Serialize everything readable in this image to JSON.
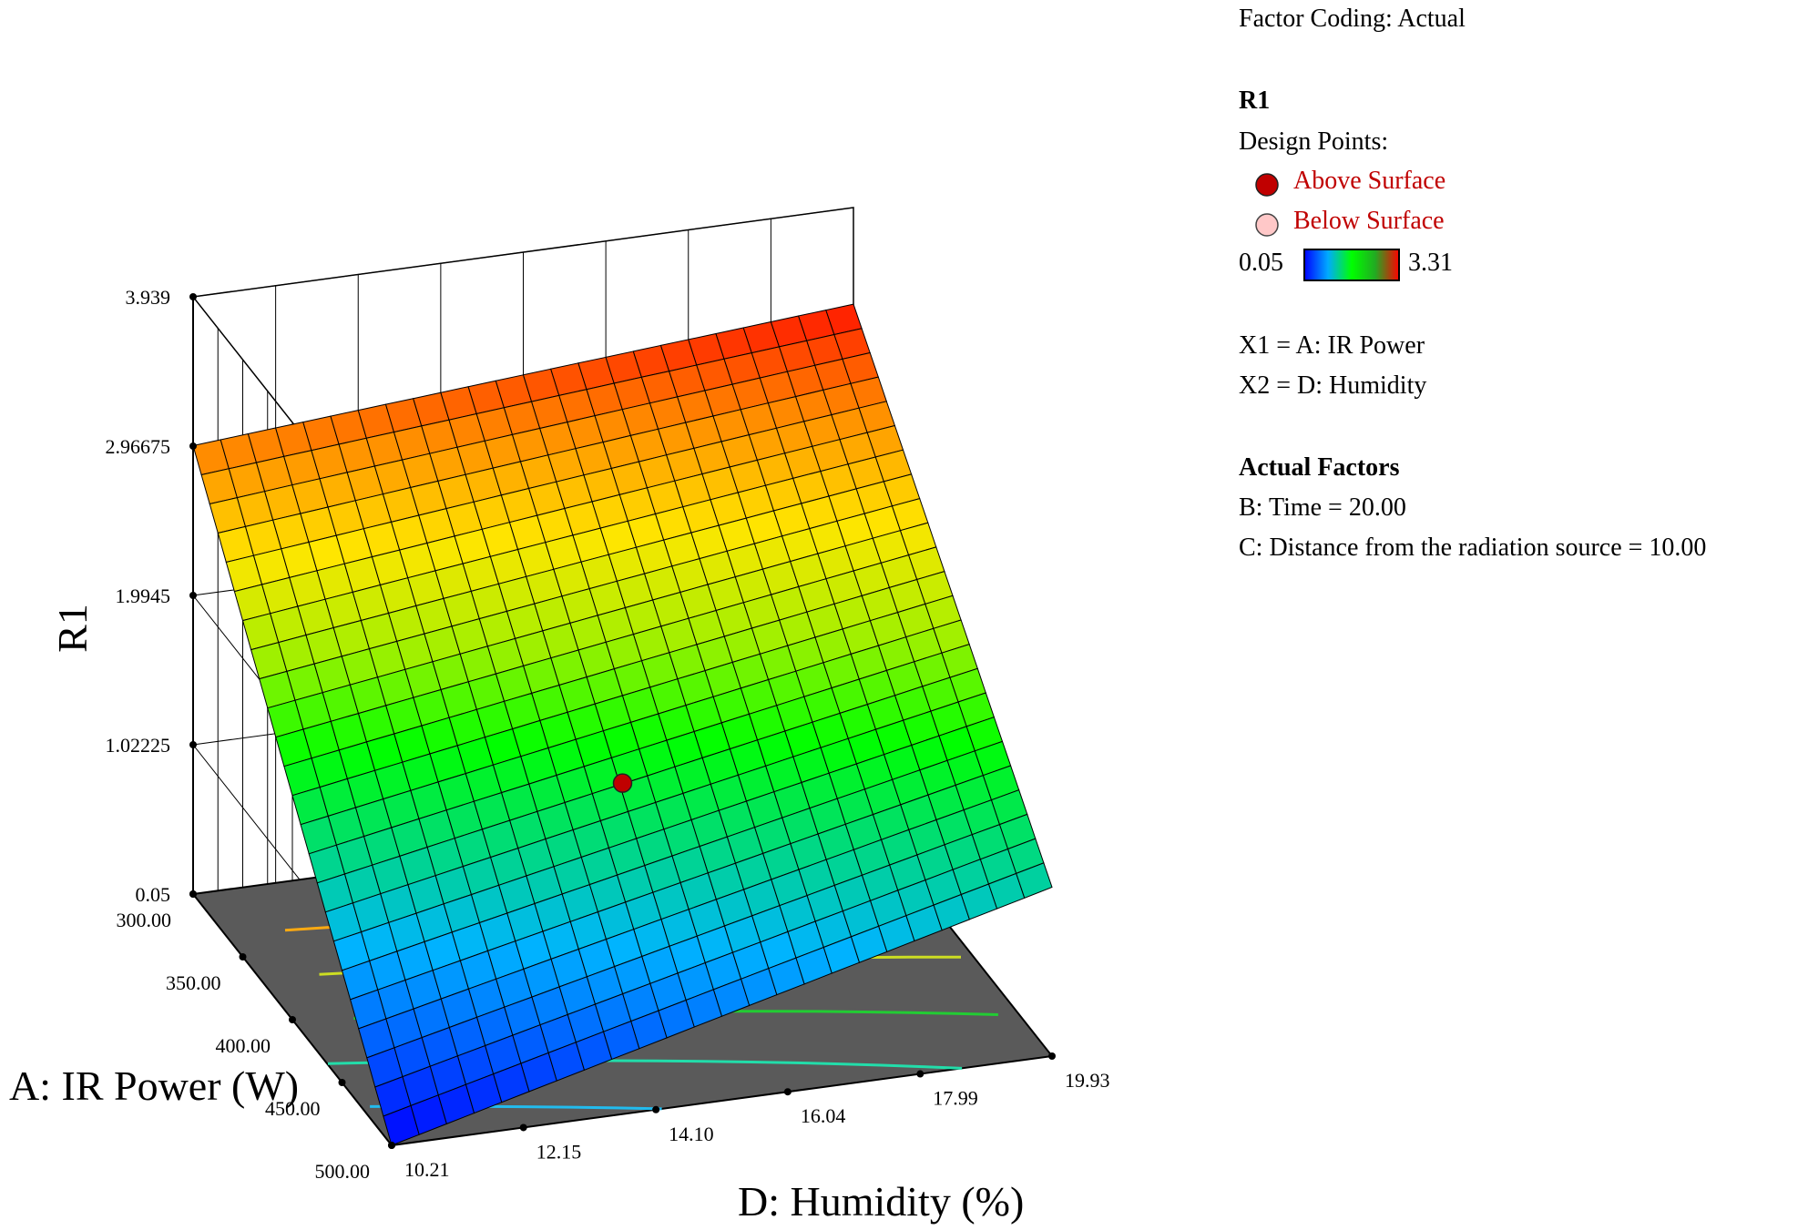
{
  "legend": {
    "factor_coding": "Factor Coding: Actual",
    "response": "R1",
    "design_points_label": "Design Points:",
    "above_label": "Above Surface",
    "below_label": "Below Surface",
    "above_color": "#c00000",
    "below_color": "#ffc8c8",
    "colorbar_min": "0.05",
    "colorbar_max": "3.31",
    "x1_def": "X1 = A: IR Power",
    "x2_def": "X2 = D: Humidity",
    "actual_factors_title": "Actual Factors",
    "factor_b": "B: Time = 20.00",
    "factor_c": "C: Distance from the radiation source = 10.00"
  },
  "chart_data": {
    "type": "surface3d",
    "title": "",
    "zlabel": "R1",
    "alabel": "A: IR Power (W)",
    "dlabel": "D: Humidity  (%)",
    "z_ticks": [
      "0.05",
      "1.02225",
      "1.9945",
      "2.96675",
      "3.939"
    ],
    "z_tick_values": [
      0.05,
      1.02225,
      1.9945,
      2.96675,
      3.939
    ],
    "zlim": [
      0.05,
      3.939
    ],
    "a_ticks": [
      "300.00",
      "350.00",
      "400.00",
      "450.00",
      "500.00"
    ],
    "a_tick_values": [
      300,
      350,
      400,
      450,
      500
    ],
    "alim": [
      300,
      500
    ],
    "d_ticks": [
      "10.21",
      "12.15",
      "14.10",
      "16.04",
      "17.99",
      "19.93"
    ],
    "d_tick_values": [
      10.21,
      12.15,
      14.1,
      16.04,
      17.99,
      19.93
    ],
    "dlim": [
      10.21,
      19.93
    ],
    "color_range": [
      0.05,
      3.31
    ],
    "surface_corners": {
      "A300_D10.21": 2.97,
      "A300_D19.93": 3.31,
      "A500_D10.21": 0.05,
      "A500_D19.93": 1.15
    },
    "contour_levels": [
      0.5,
      1.0,
      1.5,
      2.0,
      2.5
    ],
    "contour_colors": [
      "#22bbee",
      "#22ddaa",
      "#22cc33",
      "#ccdd22",
      "#ffaa11"
    ],
    "design_points": [
      {
        "A": 400,
        "D": 15.07,
        "R1": 1.3,
        "position": "above"
      }
    ],
    "floor_color": "#5a5a5a"
  }
}
